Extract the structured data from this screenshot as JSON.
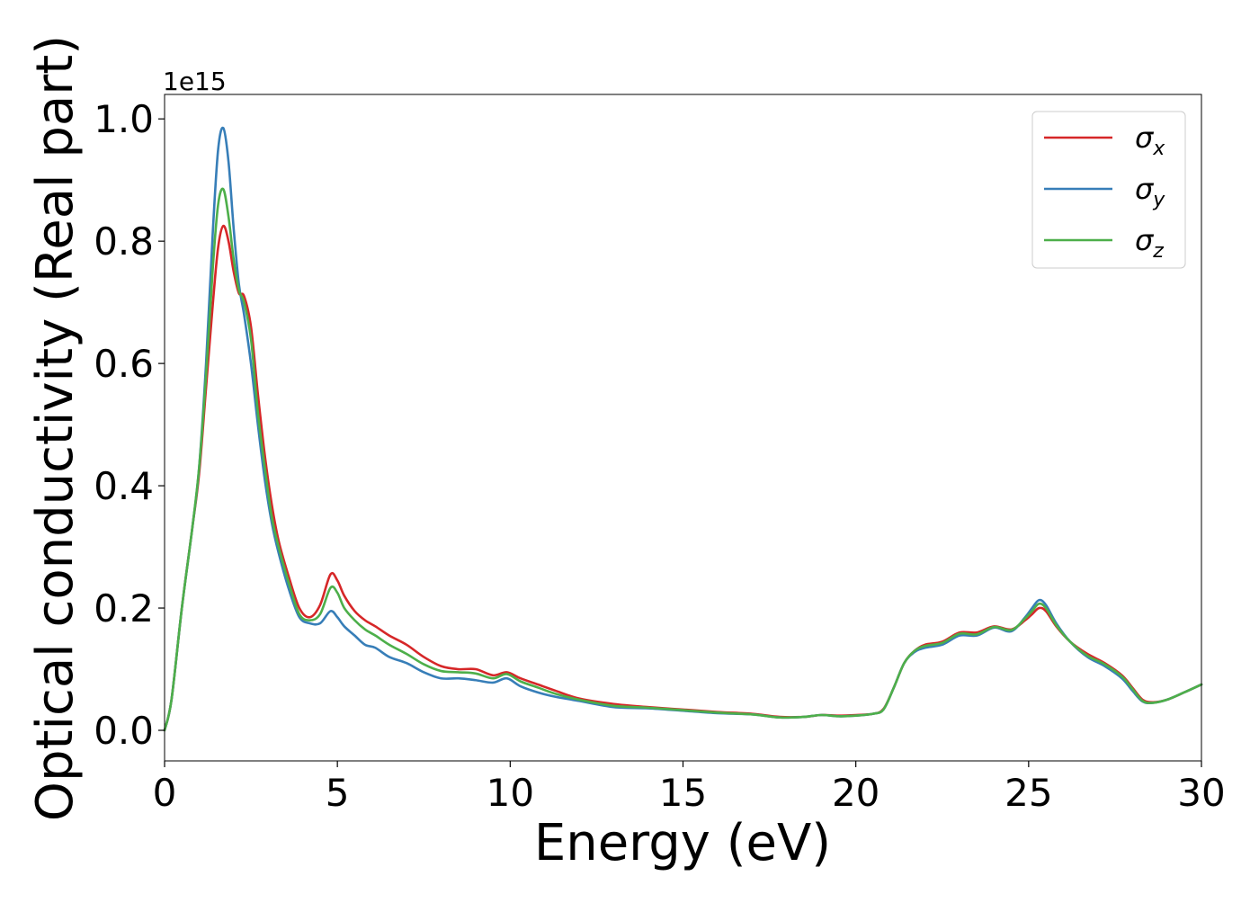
{
  "chart_data": {
    "type": "line",
    "title": "",
    "xlabel": "Energy (eV)",
    "ylabel": "Optical conductivity (Real part)",
    "offset_label": "1e15",
    "xlim": [
      0,
      30
    ],
    "ylim": [
      -0.05,
      1.04
    ],
    "xticks": [
      0,
      5,
      10,
      15,
      20,
      25,
      30
    ],
    "yticks": [
      0.0,
      0.2,
      0.4,
      0.6,
      0.8,
      1.0
    ],
    "xtick_labels": [
      "0",
      "5",
      "10",
      "15",
      "20",
      "25",
      "30"
    ],
    "ytick_labels": [
      "0.0",
      "0.2",
      "0.4",
      "0.6",
      "0.8",
      "1.0"
    ],
    "grid": false,
    "legend_position": "top-right",
    "x": [
      0.0,
      0.2,
      0.5,
      0.8,
      1.0,
      1.2,
      1.4,
      1.55,
      1.7,
      1.85,
      2.0,
      2.15,
      2.3,
      2.5,
      2.7,
      2.9,
      3.1,
      3.3,
      3.6,
      3.9,
      4.2,
      4.5,
      4.8,
      5.0,
      5.2,
      5.5,
      5.8,
      6.1,
      6.5,
      7.0,
      7.5,
      8.0,
      8.5,
      9.0,
      9.5,
      9.9,
      10.3,
      10.8,
      11.3,
      12.0,
      13.0,
      14.0,
      15.0,
      16.0,
      17.0,
      17.8,
      18.5,
      19.0,
      19.5,
      20.0,
      20.5,
      20.8,
      21.1,
      21.4,
      21.7,
      22.0,
      22.5,
      23.0,
      23.5,
      24.0,
      24.5,
      24.9,
      25.1,
      25.3,
      25.5,
      25.8,
      26.2,
      26.7,
      27.2,
      27.7,
      28.0,
      28.3,
      28.6,
      29.0,
      29.5,
      30.0
    ],
    "series": [
      {
        "name": "σx",
        "label_base": "σ",
        "label_sub": "x",
        "color": "#d62728",
        "values": [
          0.0,
          0.05,
          0.2,
          0.33,
          0.42,
          0.56,
          0.7,
          0.79,
          0.825,
          0.8,
          0.75,
          0.715,
          0.71,
          0.66,
          0.55,
          0.45,
          0.37,
          0.31,
          0.25,
          0.2,
          0.185,
          0.205,
          0.255,
          0.245,
          0.22,
          0.195,
          0.18,
          0.17,
          0.155,
          0.14,
          0.12,
          0.105,
          0.1,
          0.1,
          0.09,
          0.095,
          0.085,
          0.075,
          0.065,
          0.052,
          0.043,
          0.038,
          0.034,
          0.03,
          0.027,
          0.022,
          0.022,
          0.025,
          0.024,
          0.025,
          0.027,
          0.035,
          0.07,
          0.11,
          0.13,
          0.14,
          0.145,
          0.16,
          0.16,
          0.17,
          0.165,
          0.18,
          0.19,
          0.2,
          0.195,
          0.17,
          0.145,
          0.125,
          0.11,
          0.09,
          0.07,
          0.05,
          0.046,
          0.05,
          0.062,
          0.075
        ]
      },
      {
        "name": "σy",
        "label_base": "σ",
        "label_sub": "y",
        "color": "#377eb8",
        "values": [
          0.0,
          0.05,
          0.2,
          0.33,
          0.43,
          0.6,
          0.82,
          0.95,
          0.985,
          0.93,
          0.82,
          0.73,
          0.68,
          0.6,
          0.5,
          0.41,
          0.34,
          0.29,
          0.23,
          0.185,
          0.175,
          0.175,
          0.195,
          0.185,
          0.17,
          0.155,
          0.14,
          0.135,
          0.12,
          0.11,
          0.095,
          0.085,
          0.085,
          0.082,
          0.078,
          0.085,
          0.072,
          0.062,
          0.055,
          0.048,
          0.038,
          0.036,
          0.032,
          0.028,
          0.026,
          0.021,
          0.022,
          0.025,
          0.023,
          0.024,
          0.027,
          0.034,
          0.07,
          0.11,
          0.128,
          0.135,
          0.14,
          0.155,
          0.155,
          0.168,
          0.162,
          0.185,
          0.2,
          0.213,
          0.205,
          0.175,
          0.145,
          0.12,
          0.105,
          0.085,
          0.065,
          0.047,
          0.045,
          0.05,
          0.062,
          0.075
        ]
      },
      {
        "name": "σz",
        "label_base": "σ",
        "label_sub": "z",
        "color": "#4daf4a",
        "values": [
          0.0,
          0.05,
          0.2,
          0.33,
          0.43,
          0.58,
          0.76,
          0.86,
          0.885,
          0.84,
          0.77,
          0.72,
          0.7,
          0.64,
          0.52,
          0.43,
          0.35,
          0.3,
          0.24,
          0.19,
          0.18,
          0.19,
          0.233,
          0.225,
          0.2,
          0.18,
          0.165,
          0.155,
          0.14,
          0.125,
          0.108,
          0.097,
          0.095,
          0.093,
          0.085,
          0.092,
          0.08,
          0.07,
          0.06,
          0.05,
          0.04,
          0.037,
          0.033,
          0.029,
          0.026,
          0.021,
          0.022,
          0.025,
          0.023,
          0.024,
          0.027,
          0.034,
          0.07,
          0.11,
          0.13,
          0.138,
          0.143,
          0.158,
          0.157,
          0.169,
          0.164,
          0.183,
          0.195,
          0.207,
          0.2,
          0.172,
          0.145,
          0.122,
          0.108,
          0.088,
          0.068,
          0.048,
          0.045,
          0.05,
          0.062,
          0.075
        ]
      }
    ]
  }
}
